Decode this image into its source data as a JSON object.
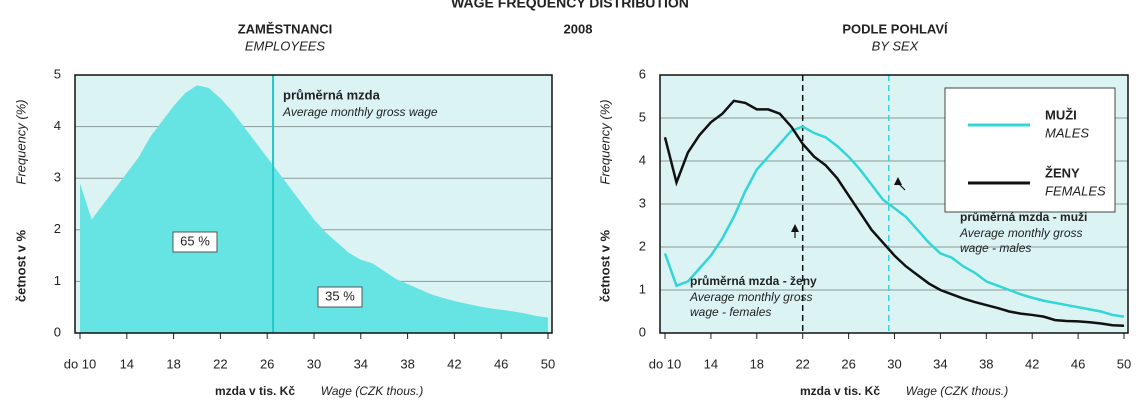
{
  "title": "WAGE FREQUENCY DISTRIBUTION",
  "year": "2008",
  "chart_data": [
    {
      "type": "area",
      "title": "ZAMĚSTNANCI",
      "subtitle": "EMPLOYEES",
      "y_label": "četnost v %",
      "y_label_en": "Frequency (%)",
      "x_label": "mzda v tis. Kč",
      "x_label_en": "Wage (CZK thous.)",
      "x": [
        10,
        11,
        12,
        13,
        14,
        15,
        16,
        17,
        18,
        19,
        20,
        21,
        22,
        23,
        24,
        25,
        26,
        27,
        28,
        29,
        30,
        31,
        32,
        33,
        34,
        35,
        36,
        37,
        38,
        39,
        40,
        41,
        42,
        43,
        44,
        45,
        46,
        47,
        48,
        49,
        50
      ],
      "values": [
        2.9,
        2.2,
        2.5,
        2.8,
        3.1,
        3.4,
        3.8,
        4.1,
        4.4,
        4.65,
        4.8,
        4.75,
        4.55,
        4.3,
        4.0,
        3.7,
        3.4,
        3.1,
        2.8,
        2.5,
        2.2,
        1.95,
        1.75,
        1.55,
        1.42,
        1.35,
        1.2,
        1.05,
        0.95,
        0.85,
        0.75,
        0.68,
        0.62,
        0.57,
        0.52,
        0.48,
        0.45,
        0.42,
        0.38,
        0.33,
        0.3
      ],
      "color": "#66e3e3",
      "xlim": [
        10,
        50
      ],
      "ylim": [
        0,
        5
      ],
      "xticks": [
        {
          "value": 10,
          "label": "do 10"
        },
        14,
        18,
        22,
        26,
        30,
        34,
        38,
        42,
        46,
        50
      ],
      "yticks": [
        0,
        1,
        2,
        3,
        4,
        5
      ],
      "grid": true,
      "mean_wage": 26.5,
      "mean_color": "#22c8c8",
      "annotation": {
        "title": "průměrná mzda",
        "text": "Average monthly gross wage"
      },
      "area_labels": [
        {
          "value": 65,
          "label": "65 %"
        },
        {
          "value": 35,
          "label": "35 %"
        }
      ]
    },
    {
      "type": "line",
      "title": "PODLE POHLAVÍ",
      "subtitle": "BY SEX",
      "y_label": "četnost v %",
      "y_label_en": "Frequency (%)",
      "x_label": "mzda v tis. Kč",
      "x_label_en": "Wage (CZK thous.)",
      "x": [
        10,
        11,
        12,
        13,
        14,
        15,
        16,
        17,
        18,
        19,
        20,
        21,
        22,
        23,
        24,
        25,
        26,
        27,
        28,
        29,
        30,
        31,
        32,
        33,
        34,
        35,
        36,
        37,
        38,
        39,
        40,
        41,
        42,
        43,
        44,
        45,
        46,
        47,
        48,
        49,
        50
      ],
      "series": [
        {
          "name": "MUŽI",
          "name_en": "MALES",
          "color": "#33d6d6",
          "values": [
            1.85,
            1.1,
            1.2,
            1.5,
            1.8,
            2.2,
            2.7,
            3.3,
            3.8,
            4.1,
            4.4,
            4.7,
            4.8,
            4.65,
            4.55,
            4.35,
            4.1,
            3.8,
            3.45,
            3.1,
            2.9,
            2.7,
            2.4,
            2.1,
            1.85,
            1.75,
            1.55,
            1.4,
            1.2,
            1.1,
            1.0,
            0.9,
            0.82,
            0.75,
            0.7,
            0.65,
            0.6,
            0.55,
            0.5,
            0.42,
            0.38
          ],
          "mean_wage": 29.5,
          "annotation": {
            "title": "průměrná mzda - muži",
            "text": "Average monthly gross",
            "text2": "wage - males"
          }
        },
        {
          "name": "ŽENY",
          "name_en": "FEMALES",
          "color": "#111111",
          "values": [
            4.55,
            3.5,
            4.2,
            4.6,
            4.9,
            5.1,
            5.4,
            5.35,
            5.2,
            5.2,
            5.1,
            4.8,
            4.4,
            4.1,
            3.9,
            3.6,
            3.2,
            2.8,
            2.4,
            2.1,
            1.8,
            1.55,
            1.35,
            1.15,
            1.0,
            0.9,
            0.8,
            0.72,
            0.65,
            0.58,
            0.5,
            0.45,
            0.42,
            0.38,
            0.3,
            0.28,
            0.27,
            0.25,
            0.22,
            0.18,
            0.17
          ],
          "mean_wage": 22,
          "annotation": {
            "title": "průměrná mzda - ženy",
            "text": "Average monthly gross",
            "text2": "wage - females"
          }
        }
      ],
      "xlim": [
        10,
        50
      ],
      "ylim": [
        0,
        6
      ],
      "xticks": [
        {
          "value": 10,
          "label": "do 10"
        },
        14,
        18,
        22,
        26,
        30,
        34,
        38,
        42,
        46,
        50
      ],
      "yticks": [
        0,
        1,
        2,
        3,
        4,
        5,
        6
      ],
      "grid": true,
      "legend": "upper right"
    }
  ]
}
